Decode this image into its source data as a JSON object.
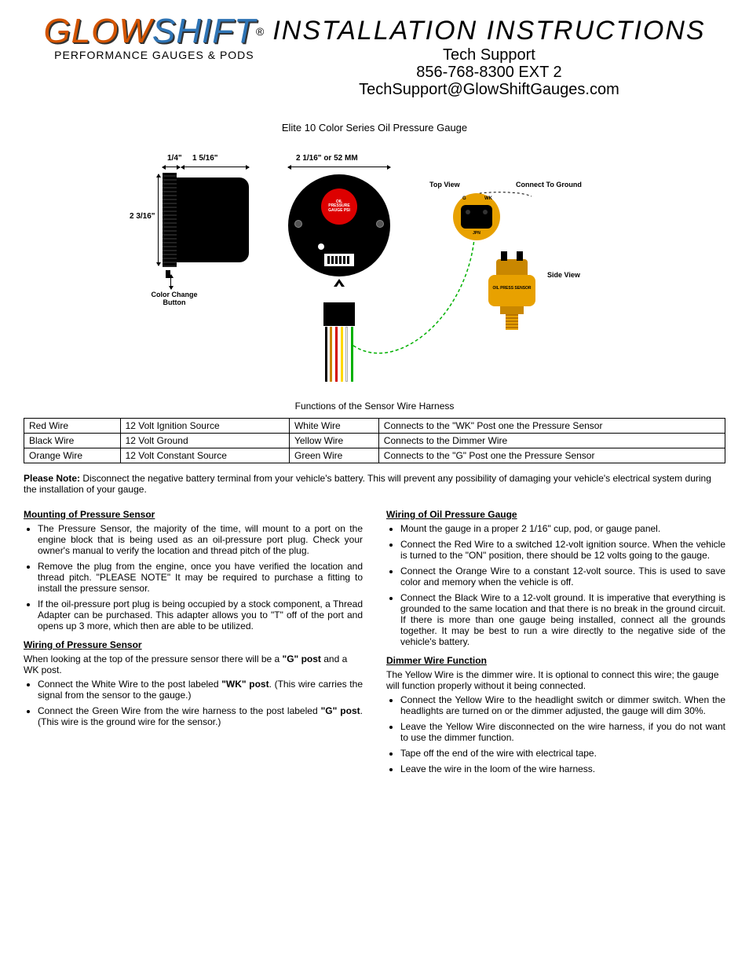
{
  "header": {
    "logo_glow": "GLOW",
    "logo_shift": "SHIFT",
    "reg": "®",
    "tagline": "PERFORMANCE GAUGES & PODS",
    "title": "INSTALLATION INSTRUCTIONS",
    "tech": "Tech Support",
    "phone": "856-768-8300 EXT 2",
    "email": "TechSupport@GlowShiftGauges.com"
  },
  "subtitle": "Elite 10 Color Series Oil Pressure Gauge",
  "diagram": {
    "dim_1_4": "1/4\"",
    "dim_1_5_16": "1 5/16\"",
    "dim_2_3_16": "2 3/16\"",
    "dim_2_1_16": "2 1/16\" or 52 MM",
    "color_btn": "Color Change\nButton",
    "top_view": "Top View",
    "side_view": "Side View",
    "connect_ground": "Connect To Ground",
    "g": "G",
    "wk": "WK",
    "jpn": "JPN",
    "face_red": "OIL\nPRESSURE\nGAUGE PSI",
    "sensor_body": "OIL PRESS SENSOR",
    "wire_colors": [
      "#000000",
      "#cc8400",
      "#d40000",
      "#ffd800",
      "#ffffff",
      "#00b000"
    ]
  },
  "functions": {
    "title": "Functions of the Sensor Wire Harness",
    "rows": [
      [
        "Red Wire",
        "12 Volt Ignition Source",
        "White Wire",
        "Connects to the \"WK\" Post one the Pressure Sensor"
      ],
      [
        "Black Wire",
        "12 Volt Ground",
        "Yellow Wire",
        "Connects to the Dimmer Wire"
      ],
      [
        "Orange Wire",
        "12 Volt Constant Source",
        "Green Wire",
        "Connects to the \"G\" Post one the Pressure Sensor"
      ]
    ]
  },
  "note1": {
    "bold": "Please Note: ",
    "text": "Disconnect the negative battery terminal from your vehicle's battery. This will prevent any possibility of damaging your vehicle's electrical system during the installation of your gauge."
  },
  "mounting": {
    "title": "Mounting of Pressure Sensor",
    "items": [
      "The Pressure Sensor, the majority of the time, will mount to a port on the engine block that is being used as an oil-pressure port plug. Check your owner's manual to verify the location and thread pitch of the plug.",
      "Remove the plug from the engine, once you have verified the location and thread pitch. \"PLEASE NOTE\" It may be required to purchase a fitting to install the pressure sensor.",
      "If the oil-pressure port plug is being occupied by a stock component, a Thread Adapter can be purchased. This adapter allows you to \"T\" off of the port and opens up 3 more, which then are able to be utilized."
    ]
  },
  "wiring_sensor": {
    "title": "Wiring of Pressure Sensor",
    "intro_pre": "When looking at the top of the pressure sensor there will be a ",
    "g_post": "\"G\" post",
    "intro_mid": " and a ",
    "wk_post_intro": "WK post.",
    "items": [
      {
        "pre": "Connect the White Wire to the post labeled ",
        "b": "\"WK\" post",
        "post": ". (This wire carries the signal from the sensor to the gauge.)"
      },
      {
        "pre": "Connect the Green Wire from the wire harness to the post labeled ",
        "b": "\"G\" post",
        "post": ". (This wire is the ground wire for the sensor.)"
      }
    ]
  },
  "wiring_gauge": {
    "title": "Wiring of Oil Pressure Gauge",
    "items": [
      "Mount the gauge in a proper 2 1/16\" cup, pod, or gauge panel.",
      "Connect the Red Wire to a switched 12-volt ignition source. When the vehicle is turned to the \"ON\" position, there should be 12 volts going to the gauge.",
      "Connect the Orange Wire to a constant 12-volt source. This is used to save color and memory when the vehicle is off.",
      "Connect the Black Wire to a 12-volt ground. It is imperative that everything is grounded to the same location and that there is no break in the ground circuit. If there is more than one gauge being installed, connect all the grounds together. It may be best to run a wire directly to the negative side of the vehicle's battery."
    ]
  },
  "dimmer": {
    "title": "Dimmer Wire Function",
    "intro": "The Yellow Wire is the dimmer wire. It is optional to connect this wire; the gauge will function properly without it being connected.",
    "items": [
      "Connect the Yellow Wire to the headlight switch or dimmer switch. When the headlights are turned on or the dimmer adjusted, the gauge will dim 30%.",
      "Leave the Yellow Wire disconnected on the wire harness, if you do not want to use the dimmer function.",
      "Tape off the end of the wire with electrical tape.",
      "Leave the wire in the loom of the wire harness."
    ]
  }
}
